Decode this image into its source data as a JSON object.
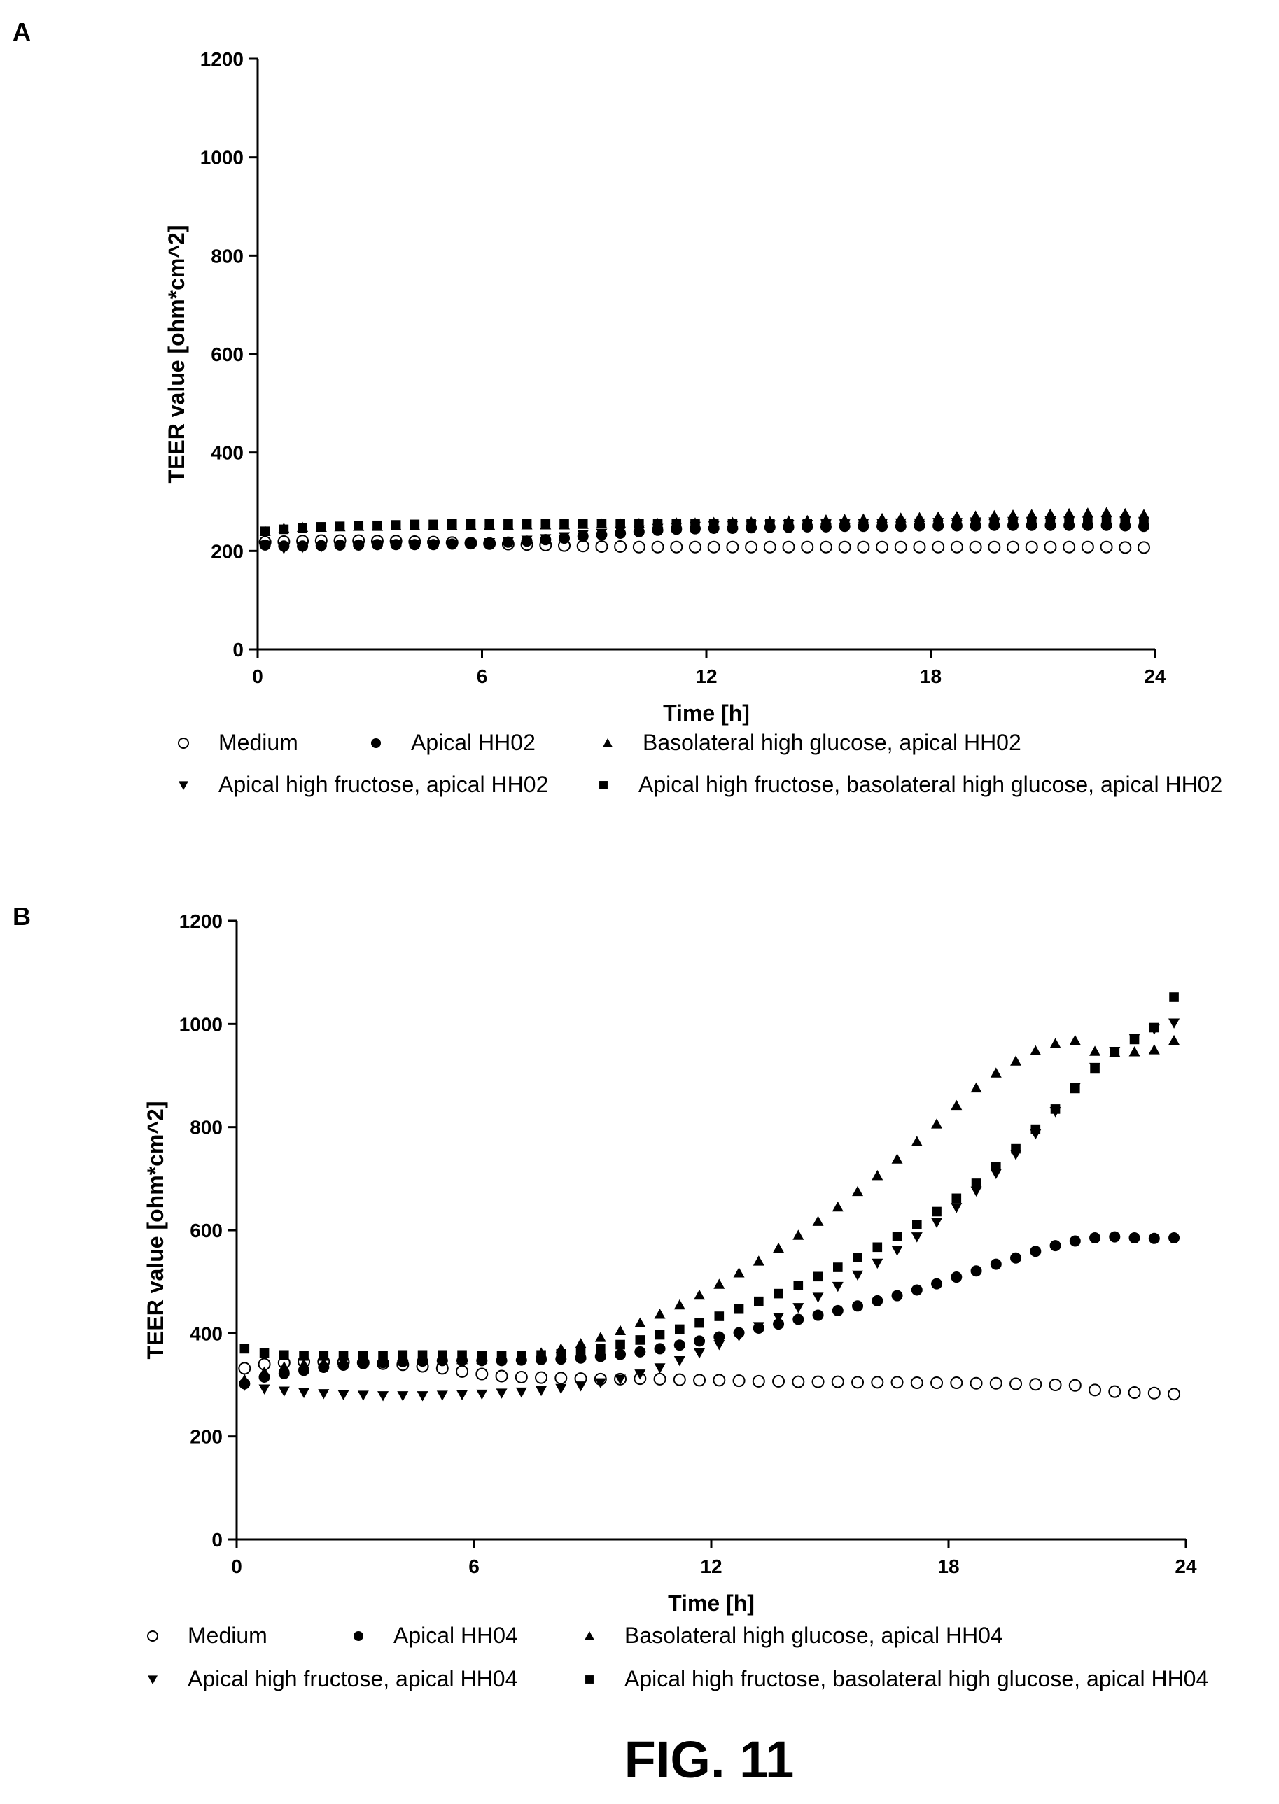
{
  "figure": {
    "label": "FIG. 11"
  },
  "chart_data": [
    {
      "panel": "A",
      "type": "scatter",
      "xlabel": "Time [h]",
      "ylabel": "TEER value [ohm*cm^2]",
      "xlim": [
        0,
        24
      ],
      "ylim": [
        0,
        1200
      ],
      "xticks": [
        "0",
        "6",
        "12",
        "18",
        "24"
      ],
      "yticks": [
        "0",
        "200",
        "400",
        "600",
        "800",
        "1000",
        "1200"
      ],
      "x": [
        0.2,
        0.7,
        1.2,
        1.7,
        2.2,
        2.7,
        3.2,
        3.7,
        4.2,
        4.7,
        5.2,
        5.7,
        6.2,
        6.7,
        7.2,
        7.7,
        8.2,
        8.7,
        9.2,
        9.7,
        10.2,
        10.7,
        11.2,
        11.7,
        12.2,
        12.7,
        13.2,
        13.7,
        14.2,
        14.7,
        15.2,
        15.7,
        16.2,
        16.7,
        17.2,
        17.7,
        18.2,
        18.7,
        19.2,
        19.7,
        20.2,
        20.7,
        21.2,
        21.7,
        22.2,
        22.7,
        23.2,
        23.7
      ],
      "legend_position": "bottom",
      "series": [
        {
          "name": "Medium",
          "marker": "open-circle",
          "values": [
            218,
            219,
            220,
            221,
            221,
            221,
            220,
            220,
            219,
            218,
            217,
            216,
            215,
            214,
            213,
            212,
            211,
            210,
            209,
            209,
            208,
            208,
            208,
            208,
            208,
            208,
            208,
            208,
            208,
            208,
            208,
            208,
            208,
            208,
            208,
            208,
            208,
            208,
            208,
            208,
            208,
            208,
            208,
            208,
            208,
            208,
            207,
            207
          ]
        },
        {
          "name": "Apical HH02",
          "marker": "filled-circle",
          "values": [
            212,
            210,
            210,
            211,
            212,
            212,
            213,
            213,
            213,
            213,
            214,
            215,
            216,
            218,
            220,
            223,
            226,
            230,
            233,
            236,
            239,
            242,
            244,
            245,
            246,
            246,
            247,
            248,
            248,
            249,
            249,
            250,
            250,
            250,
            250,
            251,
            251,
            251,
            251,
            252,
            252,
            252,
            252,
            252,
            252,
            252,
            251,
            250
          ]
        },
        {
          "name": "Basolateral high glucose, apical HH02",
          "marker": "triangle-up",
          "values": [
            240,
            246,
            248,
            248,
            249,
            250,
            250,
            251,
            251,
            251,
            251,
            252,
            252,
            252,
            253,
            253,
            253,
            254,
            255,
            255,
            256,
            256,
            257,
            257,
            258,
            258,
            259,
            260,
            261,
            262,
            263,
            264,
            265,
            266,
            267,
            268,
            269,
            270,
            271,
            272,
            273,
            274,
            275,
            276,
            277,
            278,
            276,
            274
          ]
        },
        {
          "name": "Apical high fructose, apical HH02",
          "marker": "triangle-down",
          "values": [
            212,
            205,
            207,
            208,
            210,
            211,
            212,
            213,
            213,
            213,
            214,
            215,
            217,
            219,
            222,
            225,
            229,
            233,
            236,
            240,
            243,
            246,
            248,
            250,
            251,
            252,
            253,
            253,
            254,
            254,
            255,
            255,
            256,
            256,
            257,
            257,
            258,
            258,
            259,
            259,
            260,
            260,
            261,
            261,
            262,
            262,
            261,
            260
          ]
        },
        {
          "name": "Apical high fructose, basolateral high glucose, apical HH02",
          "marker": "square",
          "values": [
            240,
            244,
            247,
            249,
            250,
            251,
            252,
            253,
            254,
            254,
            255,
            255,
            255,
            256,
            256,
            256,
            256,
            256,
            256,
            256,
            256,
            256,
            256,
            256,
            256,
            256,
            256,
            256,
            256,
            256,
            256,
            256,
            256,
            256,
            256,
            256,
            256,
            256,
            257,
            257,
            257,
            257,
            257,
            258,
            258,
            258,
            258,
            258
          ]
        }
      ]
    },
    {
      "panel": "B",
      "type": "scatter",
      "xlabel": "Time [h]",
      "ylabel": "TEER value [ohm*cm^2]",
      "xlim": [
        0,
        24
      ],
      "ylim": [
        0,
        1200
      ],
      "xticks": [
        "0",
        "6",
        "12",
        "18",
        "24"
      ],
      "yticks": [
        "0",
        "200",
        "400",
        "600",
        "800",
        "1000",
        "1200"
      ],
      "x": [
        0.2,
        0.7,
        1.2,
        1.7,
        2.2,
        2.7,
        3.2,
        3.7,
        4.2,
        4.7,
        5.2,
        5.7,
        6.2,
        6.7,
        7.2,
        7.7,
        8.2,
        8.7,
        9.2,
        9.7,
        10.2,
        10.7,
        11.2,
        11.7,
        12.2,
        12.7,
        13.2,
        13.7,
        14.2,
        14.7,
        15.2,
        15.7,
        16.2,
        16.7,
        17.2,
        17.7,
        18.2,
        18.7,
        19.2,
        19.7,
        20.2,
        20.7,
        21.2,
        21.7,
        22.2,
        22.7,
        23.2,
        23.7
      ],
      "legend_position": "bottom",
      "series": [
        {
          "name": "Medium",
          "marker": "open-circle",
          "values": [
            332,
            340,
            343,
            345,
            345,
            344,
            343,
            341,
            339,
            336,
            332,
            326,
            321,
            317,
            315,
            314,
            313,
            312,
            311,
            311,
            312,
            311,
            310,
            309,
            309,
            308,
            307,
            307,
            306,
            306,
            306,
            305,
            305,
            305,
            304,
            304,
            304,
            303,
            303,
            302,
            301,
            300,
            299,
            290,
            287,
            285,
            284,
            282
          ]
        },
        {
          "name": "Apical HH04",
          "marker": "filled-circle",
          "values": [
            302,
            315,
            322,
            328,
            334,
            338,
            341,
            343,
            345,
            346,
            347,
            347,
            347,
            347,
            348,
            349,
            350,
            352,
            355,
            359,
            364,
            370,
            377,
            385,
            393,
            401,
            410,
            418,
            427,
            435,
            444,
            453,
            463,
            473,
            484,
            496,
            509,
            521,
            534,
            546,
            559,
            570,
            579,
            585,
            587,
            585,
            584,
            585
          ]
        },
        {
          "name": "Basolateral high glucose, apical HH04",
          "marker": "triangle-up",
          "values": [
            310,
            325,
            335,
            340,
            342,
            344,
            345,
            346,
            346,
            347,
            348,
            349,
            350,
            352,
            355,
            362,
            370,
            380,
            392,
            405,
            420,
            437,
            455,
            474,
            495,
            517,
            540,
            565,
            590,
            617,
            645,
            675,
            706,
            738,
            772,
            806,
            842,
            876,
            905,
            928,
            948,
            962,
            968,
            947,
            945,
            946,
            950,
            968
          ]
        },
        {
          "name": "Apical high fructose, apical HH04",
          "marker": "triangle-down",
          "values": [
            299,
            292,
            288,
            285,
            283,
            281,
            280,
            279,
            279,
            279,
            280,
            281,
            282,
            284,
            286,
            289,
            293,
            298,
            304,
            311,
            321,
            333,
            347,
            362,
            378,
            395,
            413,
            431,
            450,
            470,
            491,
            513,
            536,
            561,
            587,
            615,
            644,
            676,
            710,
            747,
            787,
            830,
            877,
            916,
            947,
            972,
            990,
            1002
          ]
        },
        {
          "name": "Apical high fructose, basolateral high glucose, apical HH04",
          "marker": "square",
          "values": [
            370,
            362,
            358,
            356,
            356,
            356,
            357,
            357,
            358,
            358,
            358,
            358,
            357,
            357,
            357,
            358,
            360,
            364,
            370,
            378,
            387,
            397,
            408,
            420,
            433,
            447,
            462,
            477,
            493,
            510,
            528,
            547,
            567,
            588,
            611,
            636,
            662,
            691,
            723,
            758,
            796,
            835,
            875,
            913,
            945,
            970,
            993,
            1052
          ]
        }
      ]
    }
  ]
}
